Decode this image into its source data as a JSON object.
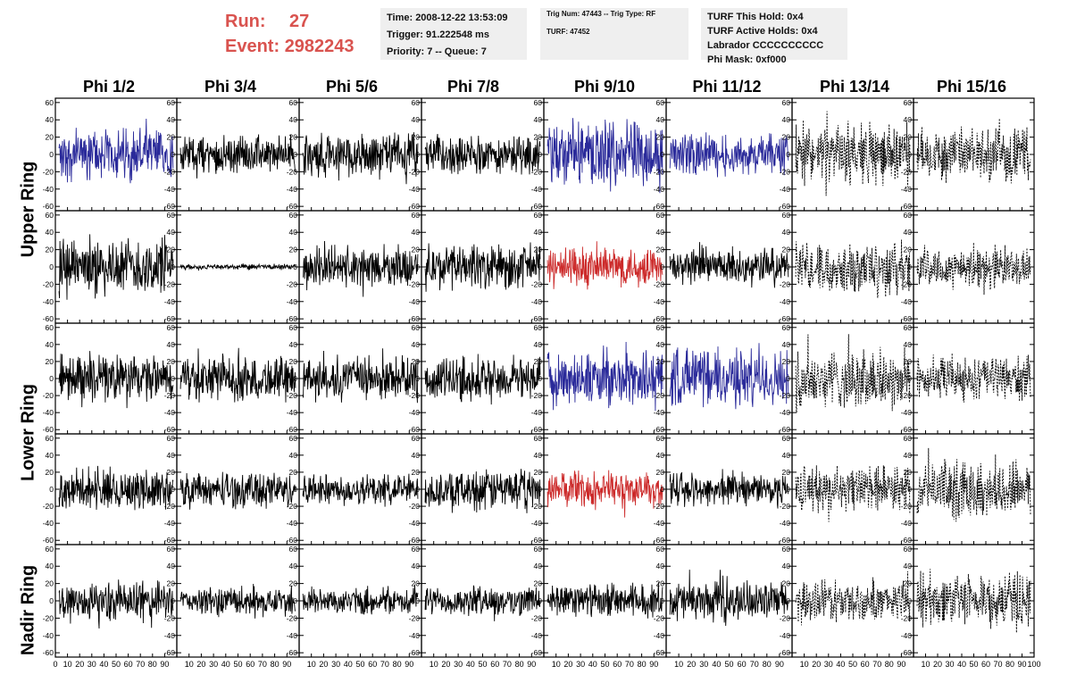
{
  "header": {
    "run_label": "Run:",
    "run_value": "27",
    "event_label": "Event:",
    "event_value": "2982243",
    "time_box": [
      "Time: 2008-12-22 13:53:09",
      "Trigger: 91.222548 ms",
      "Priority: 7 -- Queue: 7"
    ],
    "trig_box": [
      "Trig Num: 47443 -- Trig Type: RF",
      "",
      "TURF: 47452"
    ],
    "turf_box": [
      "TURF This Hold: 0x4",
      "TURF Active Holds: 0x4",
      "Labrador CCCCCCCCCC",
      "Phi Mask: 0xf000"
    ]
  },
  "colors": {
    "run_text": "#d9534f",
    "info_bg": "#efefef",
    "trace_black": "#000000",
    "trace_blue": "#2a2a9a",
    "trace_red": "#cc2a2a"
  },
  "chart_data": {
    "type": "line",
    "title": "",
    "columns": [
      "Phi 1/2",
      "Phi 3/4",
      "Phi 5/6",
      "Phi 7/8",
      "Phi 9/10",
      "Phi 11/12",
      "Phi 13/14",
      "Phi 15/16"
    ],
    "rows": [
      "Upper Ring",
      "Lower Ring",
      "Nadir Ring"
    ],
    "subrows_per_ring": {
      "Upper Ring": 2,
      "Lower Ring": 2,
      "Nadir Ring": 1
    },
    "ylim": [
      -65,
      65
    ],
    "y_ticks": [
      -60,
      -40,
      -20,
      0,
      20,
      40,
      60
    ],
    "xlim": [
      0,
      100
    ],
    "x_tick_labels": [
      "0",
      "10",
      "20",
      "30",
      "40",
      "50",
      "60",
      "70",
      "80",
      "90",
      "100"
    ],
    "series": [
      {
        "row": 0,
        "col": 0,
        "color": "blue",
        "style": "solid",
        "amplitude": 35
      },
      {
        "row": 0,
        "col": 1,
        "color": "black",
        "style": "solid",
        "amplitude": 25
      },
      {
        "row": 0,
        "col": 2,
        "color": "black",
        "style": "solid",
        "amplitude": 30
      },
      {
        "row": 0,
        "col": 3,
        "color": "black",
        "style": "solid",
        "amplitude": 25
      },
      {
        "row": 0,
        "col": 4,
        "color": "blue",
        "style": "solid",
        "amplitude": 45
      },
      {
        "row": 0,
        "col": 5,
        "color": "blue",
        "style": "solid",
        "amplitude": 28
      },
      {
        "row": 0,
        "col": 6,
        "color": "black",
        "style": "dashed",
        "amplitude": 40
      },
      {
        "row": 0,
        "col": 7,
        "color": "black",
        "style": "dashed",
        "amplitude": 35
      },
      {
        "row": 1,
        "col": 0,
        "color": "black",
        "style": "solid",
        "amplitude": 40
      },
      {
        "row": 1,
        "col": 1,
        "color": "black",
        "style": "solid",
        "amplitude": 4
      },
      {
        "row": 1,
        "col": 2,
        "color": "black",
        "style": "solid",
        "amplitude": 28
      },
      {
        "row": 1,
        "col": 3,
        "color": "black",
        "style": "solid",
        "amplitude": 30
      },
      {
        "row": 1,
        "col": 4,
        "color": "red",
        "style": "solid",
        "amplitude": 28
      },
      {
        "row": 1,
        "col": 5,
        "color": "black",
        "style": "solid",
        "amplitude": 25
      },
      {
        "row": 1,
        "col": 6,
        "color": "black",
        "style": "dashed",
        "amplitude": 35
      },
      {
        "row": 1,
        "col": 7,
        "color": "black",
        "style": "dashed",
        "amplitude": 28
      },
      {
        "row": 2,
        "col": 0,
        "color": "black",
        "style": "solid",
        "amplitude": 32
      },
      {
        "row": 2,
        "col": 1,
        "color": "black",
        "style": "solid",
        "amplitude": 30
      },
      {
        "row": 2,
        "col": 2,
        "color": "black",
        "style": "solid",
        "amplitude": 32
      },
      {
        "row": 2,
        "col": 3,
        "color": "black",
        "style": "solid",
        "amplitude": 30
      },
      {
        "row": 2,
        "col": 4,
        "color": "blue",
        "style": "solid",
        "amplitude": 38
      },
      {
        "row": 2,
        "col": 5,
        "color": "blue",
        "style": "solid",
        "amplitude": 40
      },
      {
        "row": 2,
        "col": 6,
        "color": "black",
        "style": "dashed",
        "amplitude": 42
      },
      {
        "row": 2,
        "col": 7,
        "color": "black",
        "style": "dashed",
        "amplitude": 30
      },
      {
        "row": 3,
        "col": 0,
        "color": "black",
        "style": "solid",
        "amplitude": 28
      },
      {
        "row": 3,
        "col": 1,
        "color": "black",
        "style": "solid",
        "amplitude": 25
      },
      {
        "row": 3,
        "col": 2,
        "color": "black",
        "style": "solid",
        "amplitude": 22
      },
      {
        "row": 3,
        "col": 3,
        "color": "black",
        "style": "solid",
        "amplitude": 28
      },
      {
        "row": 3,
        "col": 4,
        "color": "red",
        "style": "solid",
        "amplitude": 25
      },
      {
        "row": 3,
        "col": 5,
        "color": "black",
        "style": "solid",
        "amplitude": 22
      },
      {
        "row": 3,
        "col": 6,
        "color": "black",
        "style": "dashed",
        "amplitude": 32
      },
      {
        "row": 3,
        "col": 7,
        "color": "black",
        "style": "dashed",
        "amplitude": 38
      },
      {
        "row": 4,
        "col": 0,
        "color": "black",
        "style": "solid",
        "amplitude": 28
      },
      {
        "row": 4,
        "col": 1,
        "color": "black",
        "style": "solid",
        "amplitude": 20
      },
      {
        "row": 4,
        "col": 2,
        "color": "black",
        "style": "solid",
        "amplitude": 18
      },
      {
        "row": 4,
        "col": 3,
        "color": "black",
        "style": "solid",
        "amplitude": 20
      },
      {
        "row": 4,
        "col": 4,
        "color": "black",
        "style": "solid",
        "amplitude": 22
      },
      {
        "row": 4,
        "col": 5,
        "color": "black",
        "style": "solid",
        "amplitude": 28
      },
      {
        "row": 4,
        "col": 6,
        "color": "black",
        "style": "dashed",
        "amplitude": 28
      },
      {
        "row": 4,
        "col": 7,
        "color": "black",
        "style": "dashed",
        "amplitude": 40
      }
    ]
  }
}
